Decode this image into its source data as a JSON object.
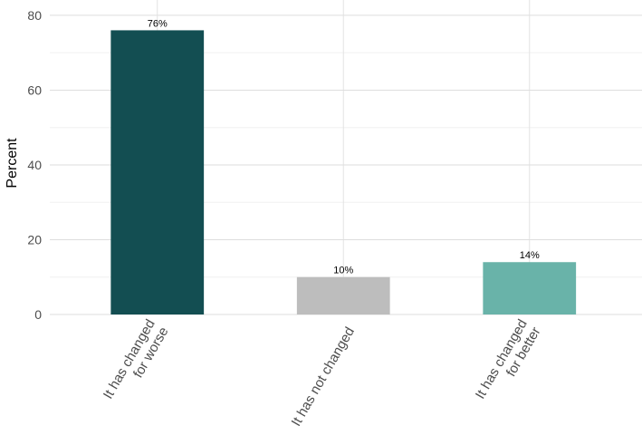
{
  "chart_data": {
    "type": "bar",
    "y_label": "Percent",
    "categories": [
      "It has changed\nfor worse",
      "It has not changed",
      "It has changed\nfor better"
    ],
    "values": [
      76,
      10,
      14
    ],
    "value_labels": [
      "76%",
      "10%",
      "14%"
    ],
    "colors": [
      "#134e52",
      "#bdbdbd",
      "#69b3a9"
    ],
    "ylim": [
      0,
      84.1
    ],
    "yticks": [
      0,
      20,
      40,
      60,
      80
    ],
    "grid": true
  }
}
